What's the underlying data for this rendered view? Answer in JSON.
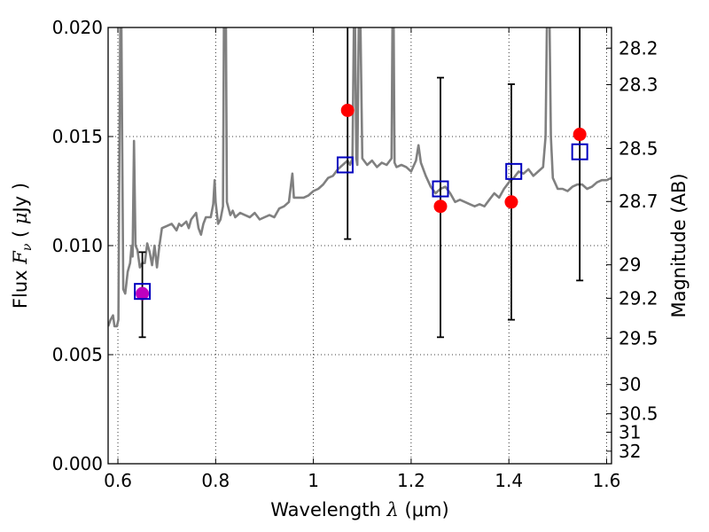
{
  "chart_data": {
    "type": "scatter",
    "xlabel": "Wavelength  λ (μm)",
    "xlabel_parts": {
      "text": "Wavelength  ",
      "symbol": "λ",
      "unit": " (μm)"
    },
    "ylabel": "Flux  Fν  ( μJy )",
    "ylabel_parts": {
      "text": "Flux  ",
      "symbol": "F",
      "subscript": "ν",
      "open": "  ( ",
      "unit_symbol": "μ",
      "unit": "Jy )"
    },
    "y2label": "Magnitude (AB)",
    "xlim": [
      0.58,
      1.61
    ],
    "ylim": [
      0.0,
      0.02
    ],
    "x_ticks": [
      "0.6",
      "0.8",
      "1",
      "1.2",
      "1.4",
      "1.6"
    ],
    "y_ticks": [
      "0.000",
      "0.005",
      "0.010",
      "0.015",
      "0.020"
    ],
    "y2_ticks": [
      "28.2",
      "28.3",
      "28.5",
      "28.7",
      "29",
      "29.2",
      "29.5",
      "30",
      "30.5",
      "31",
      "32"
    ],
    "grid": true,
    "colors": {
      "model": "#808080",
      "observed": "#ff0000",
      "observed_first": "#bf00bf",
      "synthetic": "#0000bf",
      "errorbar": "#000000"
    },
    "observed": [
      {
        "x": 0.65,
        "y": 0.0078,
        "yerr_low": 0.0058,
        "yerr_high": 0.0097
      },
      {
        "x": 1.07,
        "y": 0.0162,
        "yerr_low": 0.0103,
        "yerr_high": 0.0205
      },
      {
        "x": 1.26,
        "y": 0.0118,
        "yerr_low": 0.0058,
        "yerr_high": 0.0177
      },
      {
        "x": 1.405,
        "y": 0.012,
        "yerr_low": 0.0066,
        "yerr_high": 0.0174
      },
      {
        "x": 1.545,
        "y": 0.0151,
        "yerr_low": 0.0084,
        "yerr_high": 0.0205
      }
    ],
    "synthetic": [
      {
        "x": 0.65,
        "y": 0.0079
      },
      {
        "x": 1.065,
        "y": 0.0137
      },
      {
        "x": 1.26,
        "y": 0.0126
      },
      {
        "x": 1.41,
        "y": 0.0134
      },
      {
        "x": 1.545,
        "y": 0.0143
      }
    ],
    "model_spectrum": [
      [
        0.58,
        0.0063
      ],
      [
        0.585,
        0.0066
      ],
      [
        0.59,
        0.0068
      ],
      [
        0.593,
        0.0063
      ],
      [
        0.598,
        0.0063
      ],
      [
        0.601,
        0.0066
      ],
      [
        0.603,
        0.014
      ],
      [
        0.605,
        0.0205
      ],
      [
        0.607,
        0.0205
      ],
      [
        0.609,
        0.014
      ],
      [
        0.611,
        0.008
      ],
      [
        0.615,
        0.0078
      ],
      [
        0.62,
        0.0088
      ],
      [
        0.625,
        0.0092
      ],
      [
        0.628,
        0.01
      ],
      [
        0.63,
        0.0095
      ],
      [
        0.633,
        0.0148
      ],
      [
        0.636,
        0.01
      ],
      [
        0.64,
        0.0098
      ],
      [
        0.645,
        0.009
      ],
      [
        0.65,
        0.0092
      ],
      [
        0.655,
        0.0092
      ],
      [
        0.66,
        0.0101
      ],
      [
        0.665,
        0.0097
      ],
      [
        0.67,
        0.0091
      ],
      [
        0.675,
        0.01
      ],
      [
        0.68,
        0.009
      ],
      [
        0.685,
        0.01
      ],
      [
        0.69,
        0.0108
      ],
      [
        0.7,
        0.0109
      ],
      [
        0.71,
        0.011
      ],
      [
        0.72,
        0.0107
      ],
      [
        0.725,
        0.011
      ],
      [
        0.73,
        0.0109
      ],
      [
        0.74,
        0.0111
      ],
      [
        0.745,
        0.0108
      ],
      [
        0.75,
        0.0112
      ],
      [
        0.76,
        0.0115
      ],
      [
        0.765,
        0.0108
      ],
      [
        0.77,
        0.0105
      ],
      [
        0.775,
        0.011
      ],
      [
        0.78,
        0.0113
      ],
      [
        0.79,
        0.0113
      ],
      [
        0.795,
        0.0119
      ],
      [
        0.798,
        0.013
      ],
      [
        0.8,
        0.012
      ],
      [
        0.805,
        0.011
      ],
      [
        0.81,
        0.0112
      ],
      [
        0.815,
        0.0118
      ],
      [
        0.817,
        0.0205
      ],
      [
        0.821,
        0.0205
      ],
      [
        0.823,
        0.012
      ],
      [
        0.83,
        0.0114
      ],
      [
        0.835,
        0.0116
      ],
      [
        0.84,
        0.0113
      ],
      [
        0.85,
        0.0115
      ],
      [
        0.86,
        0.0114
      ],
      [
        0.87,
        0.0113
      ],
      [
        0.88,
        0.0115
      ],
      [
        0.89,
        0.0112
      ],
      [
        0.9,
        0.0113
      ],
      [
        0.91,
        0.0114
      ],
      [
        0.92,
        0.0113
      ],
      [
        0.93,
        0.0117
      ],
      [
        0.94,
        0.0118
      ],
      [
        0.95,
        0.012
      ],
      [
        0.957,
        0.0133
      ],
      [
        0.96,
        0.0122
      ],
      [
        0.97,
        0.0122
      ],
      [
        0.98,
        0.0122
      ],
      [
        0.99,
        0.0123
      ],
      [
        1.0,
        0.0125
      ],
      [
        1.01,
        0.0126
      ],
      [
        1.02,
        0.0128
      ],
      [
        1.03,
        0.0131
      ],
      [
        1.04,
        0.0132
      ],
      [
        1.05,
        0.0135
      ],
      [
        1.06,
        0.0137
      ],
      [
        1.07,
        0.0139
      ],
      [
        1.075,
        0.0137
      ],
      [
        1.08,
        0.014
      ],
      [
        1.083,
        0.0205
      ],
      [
        1.085,
        0.0205
      ],
      [
        1.088,
        0.014
      ],
      [
        1.09,
        0.0137
      ],
      [
        1.093,
        0.0205
      ],
      [
        1.096,
        0.0205
      ],
      [
        1.1,
        0.014
      ],
      [
        1.11,
        0.0137
      ],
      [
        1.12,
        0.0139
      ],
      [
        1.13,
        0.0136
      ],
      [
        1.14,
        0.0138
      ],
      [
        1.15,
        0.0137
      ],
      [
        1.16,
        0.014
      ],
      [
        1.162,
        0.0205
      ],
      [
        1.164,
        0.0205
      ],
      [
        1.166,
        0.0138
      ],
      [
        1.17,
        0.0136
      ],
      [
        1.18,
        0.0137
      ],
      [
        1.19,
        0.0136
      ],
      [
        1.2,
        0.0134
      ],
      [
        1.21,
        0.0139
      ],
      [
        1.215,
        0.0146
      ],
      [
        1.22,
        0.0138
      ],
      [
        1.23,
        0.0132
      ],
      [
        1.24,
        0.0127
      ],
      [
        1.25,
        0.0124
      ],
      [
        1.26,
        0.0126
      ],
      [
        1.27,
        0.0127
      ],
      [
        1.28,
        0.0124
      ],
      [
        1.29,
        0.012
      ],
      [
        1.3,
        0.0121
      ],
      [
        1.31,
        0.012
      ],
      [
        1.32,
        0.0119
      ],
      [
        1.33,
        0.0118
      ],
      [
        1.34,
        0.0119
      ],
      [
        1.35,
        0.0118
      ],
      [
        1.36,
        0.0121
      ],
      [
        1.37,
        0.0124
      ],
      [
        1.38,
        0.0122
      ],
      [
        1.39,
        0.0126
      ],
      [
        1.4,
        0.0129
      ],
      [
        1.41,
        0.0131
      ],
      [
        1.42,
        0.0134
      ],
      [
        1.43,
        0.0133
      ],
      [
        1.44,
        0.0135
      ],
      [
        1.45,
        0.0132
      ],
      [
        1.46,
        0.0134
      ],
      [
        1.47,
        0.0136
      ],
      [
        1.475,
        0.015
      ],
      [
        1.478,
        0.0205
      ],
      [
        1.483,
        0.0205
      ],
      [
        1.486,
        0.015
      ],
      [
        1.49,
        0.0131
      ],
      [
        1.5,
        0.0126
      ],
      [
        1.51,
        0.0126
      ],
      [
        1.52,
        0.0125
      ],
      [
        1.53,
        0.0127
      ],
      [
        1.54,
        0.0128
      ],
      [
        1.55,
        0.0128
      ],
      [
        1.56,
        0.0126
      ],
      [
        1.57,
        0.0127
      ],
      [
        1.58,
        0.0129
      ],
      [
        1.59,
        0.013
      ],
      [
        1.6,
        0.013
      ],
      [
        1.61,
        0.0131
      ]
    ]
  }
}
